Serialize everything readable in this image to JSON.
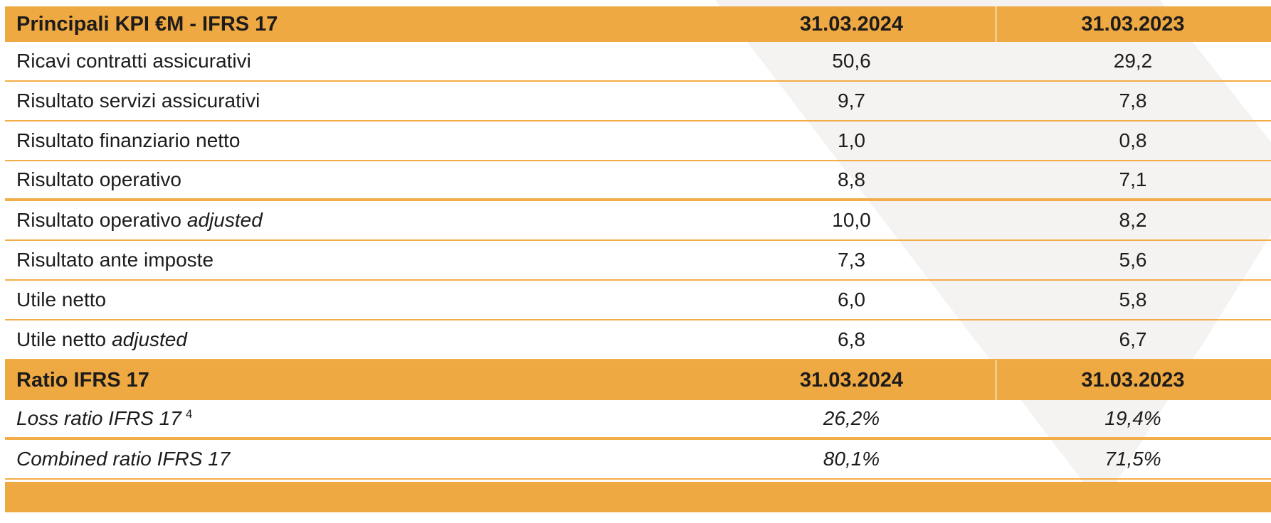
{
  "colors": {
    "header_bg": "#EFA942",
    "separator_line": "#F2AC48",
    "watermark_gray": "#F4F3F1",
    "text": "#1D1C1B"
  },
  "kpi_section": {
    "title": "Principali KPI €M - IFRS 17",
    "col_2024": "31.03.2024",
    "col_2023": "31.03.2023",
    "rows": [
      {
        "label": "Ricavi contratti assicurativi",
        "label_italic": "",
        "y2024": "50,6",
        "y2023": "29,2"
      },
      {
        "label": "Risultato servizi assicurativi",
        "label_italic": "",
        "y2024": "9,7",
        "y2023": "7,8"
      },
      {
        "label": "Risultato finanziario netto",
        "label_italic": "",
        "y2024": "1,0",
        "y2023": "0,8"
      },
      {
        "label": "Risultato operativo",
        "label_italic": "",
        "y2024": "8,8",
        "y2023": "7,1"
      },
      {
        "label": "Risultato operativo",
        "label_italic": "adjusted",
        "y2024": "10,0",
        "y2023": "8,2"
      },
      {
        "label": "Risultato ante imposte",
        "label_italic": "",
        "y2024": "7,3",
        "y2023": "5,6"
      },
      {
        "label": "Utile netto",
        "label_italic": "",
        "y2024": "6,0",
        "y2023": "5,8"
      },
      {
        "label": "Utile netto",
        "label_italic": "adjusted",
        "y2024": "6,8",
        "y2023": "6,7"
      }
    ]
  },
  "ratio_section": {
    "title": "Ratio IFRS 17",
    "col_2024": "31.03.2024",
    "col_2023": "31.03.2023",
    "rows": [
      {
        "label": "Loss ratio IFRS 17",
        "sup": "4",
        "y2024": "26,2%",
        "y2023": "19,4%"
      },
      {
        "label": "Combined ratio IFRS 17",
        "sup": "",
        "y2024": "80,1%",
        "y2023": "71,5%"
      }
    ]
  }
}
